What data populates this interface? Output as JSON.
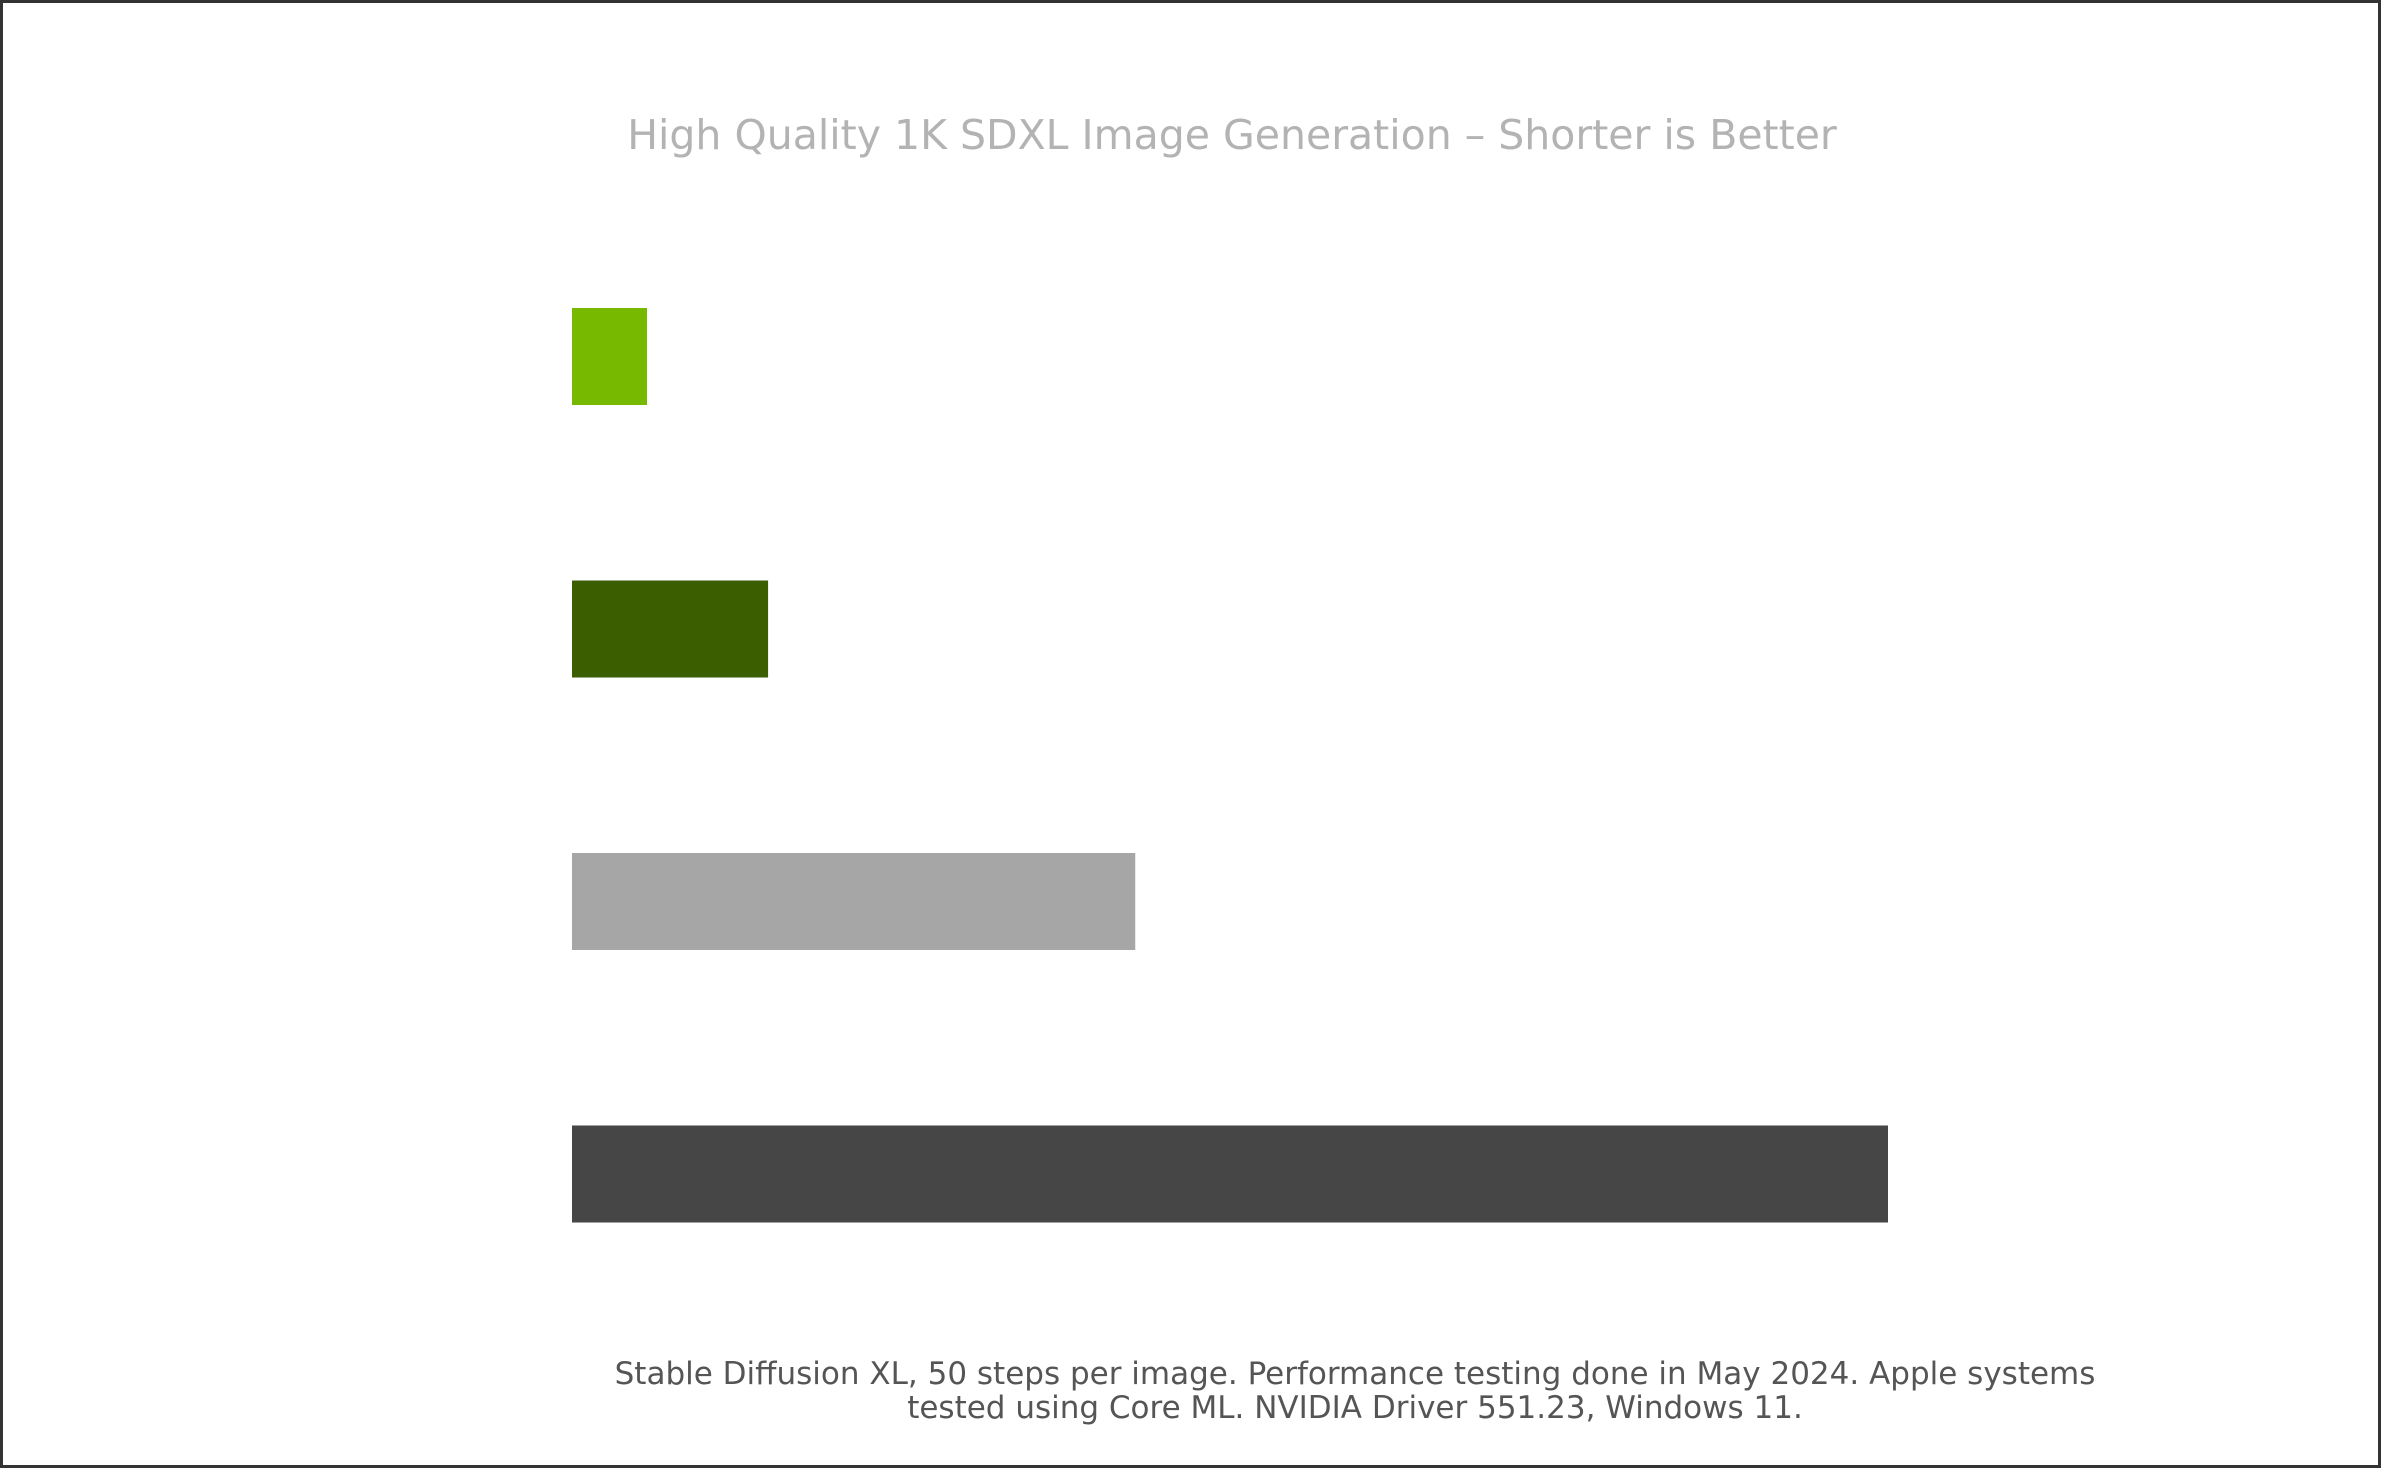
{
  "chart_data": {
    "type": "bar",
    "orientation": "horizontal",
    "title": "High Quality 1K SDXL Image Generation – Shorter is Better",
    "xlabel": "",
    "ylabel": "",
    "categories": [
      "",
      "",
      "",
      ""
    ],
    "values": [
      5.7,
      14.9,
      42.8,
      100
    ],
    "bar_colors": [
      "#76b900",
      "#3a5e00",
      "#a6a6a6",
      "#464646"
    ],
    "grid": false,
    "axes_visible": false,
    "legend": "none"
  },
  "footnote": {
    "line1": "Stable Diffusion XL, 50 steps per image. Performance testing done in May 2024. Apple systems",
    "line2": "tested using Core ML. NVIDIA Driver 551.23, Windows 11."
  }
}
